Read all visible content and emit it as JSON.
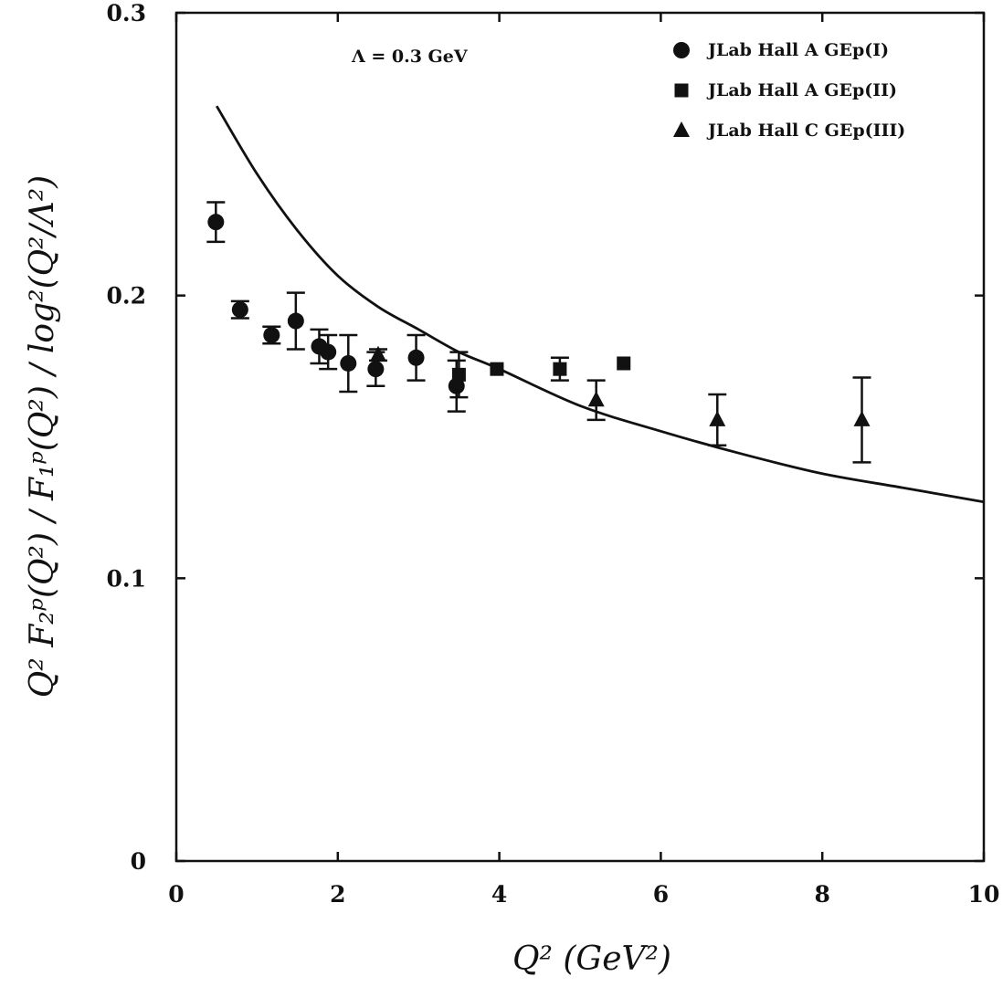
{
  "chart_data": {
    "type": "scatter",
    "xlabel": "Q² (GeV²)",
    "ylabel": "Q² F₂ᵖ(Q²) / F₁ᵖ(Q²) / log²(Q²/Λ²)",
    "xlim": [
      0,
      10
    ],
    "ylim": [
      0,
      0.3
    ],
    "x_ticks": [
      "0",
      "2",
      "4",
      "6",
      "8",
      "10"
    ],
    "y_ticks": [
      "0",
      "0.1",
      "0.2",
      "0.3"
    ],
    "grid": false,
    "legend_position": "top-right",
    "annotation": "Λ = 0.3 GeV",
    "series": [
      {
        "name": "JLab Hall A GEp(I)",
        "marker": "circle",
        "points": [
          {
            "x": 0.49,
            "y": 0.226,
            "err": 0.007
          },
          {
            "x": 0.79,
            "y": 0.195,
            "err": 0.003
          },
          {
            "x": 1.18,
            "y": 0.186,
            "err": 0.003
          },
          {
            "x": 1.48,
            "y": 0.191,
            "err": 0.01
          },
          {
            "x": 1.77,
            "y": 0.182,
            "err": 0.006
          },
          {
            "x": 1.88,
            "y": 0.18,
            "err": 0.006
          },
          {
            "x": 2.13,
            "y": 0.176,
            "err": 0.01
          },
          {
            "x": 2.47,
            "y": 0.174,
            "err": 0.006
          },
          {
            "x": 2.97,
            "y": 0.178,
            "err": 0.008
          },
          {
            "x": 3.47,
            "y": 0.168,
            "err": 0.009
          }
        ]
      },
      {
        "name": "JLab Hall A GEp(II)",
        "marker": "square",
        "points": [
          {
            "x": 3.5,
            "y": 0.172,
            "err": 0.008
          },
          {
            "x": 3.97,
            "y": 0.174,
            "err": 0.001
          },
          {
            "x": 4.75,
            "y": 0.174,
            "err": 0.004
          },
          {
            "x": 5.54,
            "y": 0.176,
            "err": 0.001
          }
        ]
      },
      {
        "name": "JLab Hall C GEp(III)",
        "marker": "triangle",
        "points": [
          {
            "x": 2.5,
            "y": 0.179,
            "err": 0.002
          },
          {
            "x": 5.2,
            "y": 0.163,
            "err": 0.007
          },
          {
            "x": 6.7,
            "y": 0.156,
            "err": 0.009
          },
          {
            "x": 8.49,
            "y": 0.156,
            "err": 0.015
          }
        ]
      },
      {
        "name": "",
        "type": "line",
        "points": [
          {
            "x": 0.5,
            "y": 0.267
          },
          {
            "x": 1.0,
            "y": 0.243
          },
          {
            "x": 1.5,
            "y": 0.223
          },
          {
            "x": 2.0,
            "y": 0.207
          },
          {
            "x": 2.5,
            "y": 0.196
          },
          {
            "x": 3.0,
            "y": 0.188
          },
          {
            "x": 3.5,
            "y": 0.18
          },
          {
            "x": 4.0,
            "y": 0.174
          },
          {
            "x": 5.0,
            "y": 0.161
          },
          {
            "x": 6.0,
            "y": 0.152
          },
          {
            "x": 7.0,
            "y": 0.144
          },
          {
            "x": 8.0,
            "y": 0.137
          },
          {
            "x": 9.0,
            "y": 0.132
          },
          {
            "x": 10.0,
            "y": 0.127
          }
        ]
      }
    ]
  }
}
